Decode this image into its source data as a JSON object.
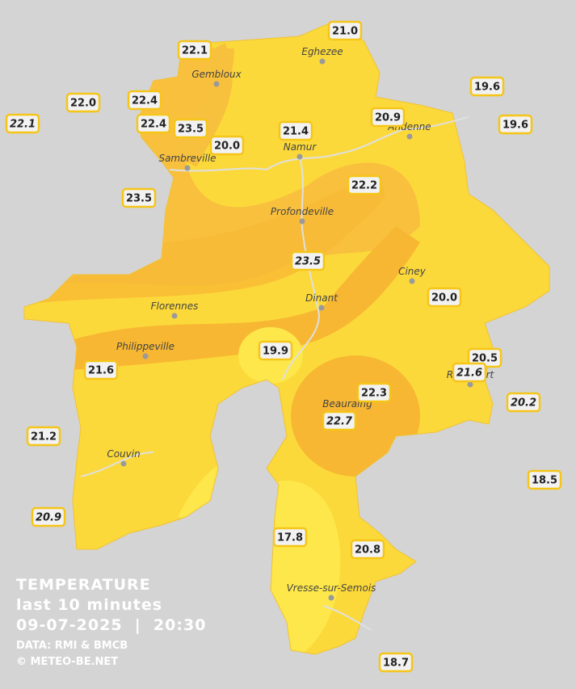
{
  "title": [
    "TEMPERATURE",
    "last 10 minutes",
    "09-07-2025  |  20:30"
  ],
  "credits": [
    "DATA: RMI & BMCB",
    "© METEO-BE.NET"
  ],
  "cities": [
    "Gembloux",
    "Eghezee",
    "Andenne",
    "Namur",
    "Sambreville",
    "Profondeville",
    "Ciney",
    "Dinant",
    "Florennes",
    "Philippeville",
    "Beauraing",
    "Rochefort",
    "Couvin",
    "Vresse-sur-Semois"
  ],
  "stations": [
    {
      "label": "22.1",
      "italic": false
    },
    {
      "label": "21.0",
      "italic": false
    },
    {
      "label": "19.6",
      "italic": false
    },
    {
      "label": "22.0",
      "italic": false
    },
    {
      "label": "22.4",
      "italic": false
    },
    {
      "label": "22.1",
      "italic": true
    },
    {
      "label": "22.4",
      "italic": false
    },
    {
      "label": "23.5",
      "italic": false
    },
    {
      "label": "20.9",
      "italic": false
    },
    {
      "label": "19.6",
      "italic": false
    },
    {
      "label": "21.4",
      "italic": false
    },
    {
      "label": "20.0",
      "italic": false
    },
    {
      "label": "23.5",
      "italic": false
    },
    {
      "label": "22.2",
      "italic": false
    },
    {
      "label": "23.5",
      "italic": true
    },
    {
      "label": "20.0",
      "italic": false
    },
    {
      "label": "19.9",
      "italic": false
    },
    {
      "label": "20.5",
      "italic": false
    },
    {
      "label": "21.6",
      "italic": true
    },
    {
      "label": "21.6",
      "italic": false
    },
    {
      "label": "20.2",
      "italic": true
    },
    {
      "label": "22.3",
      "italic": false
    },
    {
      "label": "22.7",
      "italic": true
    },
    {
      "label": "21.2",
      "italic": false
    },
    {
      "label": "18.5",
      "italic": false
    },
    {
      "label": "20.9",
      "italic": true
    },
    {
      "label": "17.8",
      "italic": false
    },
    {
      "label": "20.8",
      "italic": false
    },
    {
      "label": "18.7",
      "italic": false
    }
  ]
}
